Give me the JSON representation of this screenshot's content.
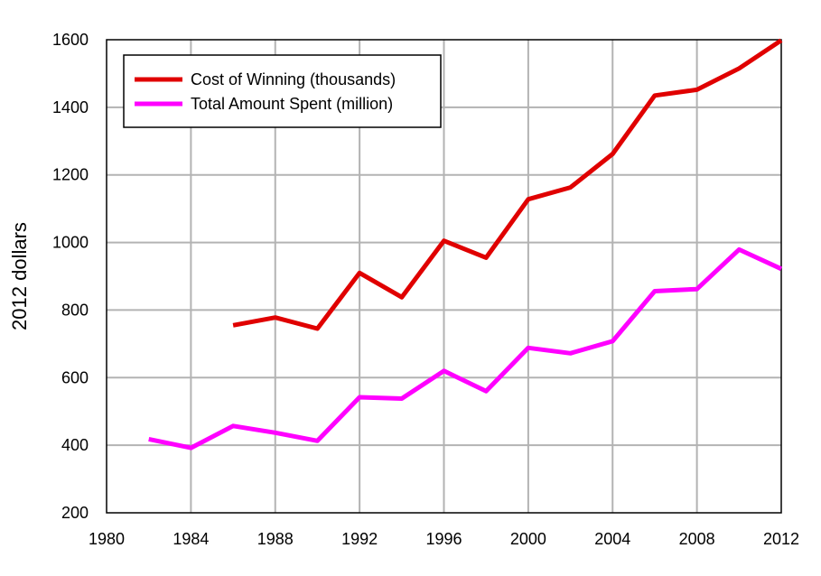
{
  "chart_data": {
    "type": "line",
    "title": "",
    "xlabel": "",
    "ylabel": "2012 dollars",
    "xlim": [
      1980,
      2012
    ],
    "ylim": [
      200,
      1600
    ],
    "xticks": [
      1980,
      1984,
      1988,
      1992,
      1996,
      2000,
      2004,
      2008,
      2012
    ],
    "yticks": [
      200,
      400,
      600,
      800,
      1000,
      1200,
      1400,
      1600
    ],
    "grid": true,
    "legend_position": "top-left",
    "series": [
      {
        "name": "Cost of Winning (thousands)",
        "color": "#e00000",
        "points": [
          [
            1986,
            755
          ],
          [
            1988,
            778
          ],
          [
            1990,
            745
          ],
          [
            1992,
            910
          ],
          [
            1994,
            838
          ],
          [
            1996,
            1005
          ],
          [
            1998,
            955
          ],
          [
            2000,
            1128
          ],
          [
            2002,
            1163
          ],
          [
            2004,
            1262
          ],
          [
            2006,
            1435
          ],
          [
            2008,
            1452
          ],
          [
            2010,
            1515
          ],
          [
            2012,
            1598
          ]
        ]
      },
      {
        "name": "Total Amount Spent (million)",
        "color": "#ff00ff",
        "points": [
          [
            1982,
            418
          ],
          [
            1984,
            392
          ],
          [
            1986,
            457
          ],
          [
            1988,
            437
          ],
          [
            1990,
            413
          ],
          [
            1992,
            542
          ],
          [
            1994,
            538
          ],
          [
            1996,
            620
          ],
          [
            1998,
            560
          ],
          [
            2000,
            688
          ],
          [
            2002,
            672
          ],
          [
            2004,
            708
          ],
          [
            2006,
            856
          ],
          [
            2008,
            862
          ],
          [
            2010,
            979
          ],
          [
            2012,
            922
          ]
        ]
      }
    ]
  }
}
